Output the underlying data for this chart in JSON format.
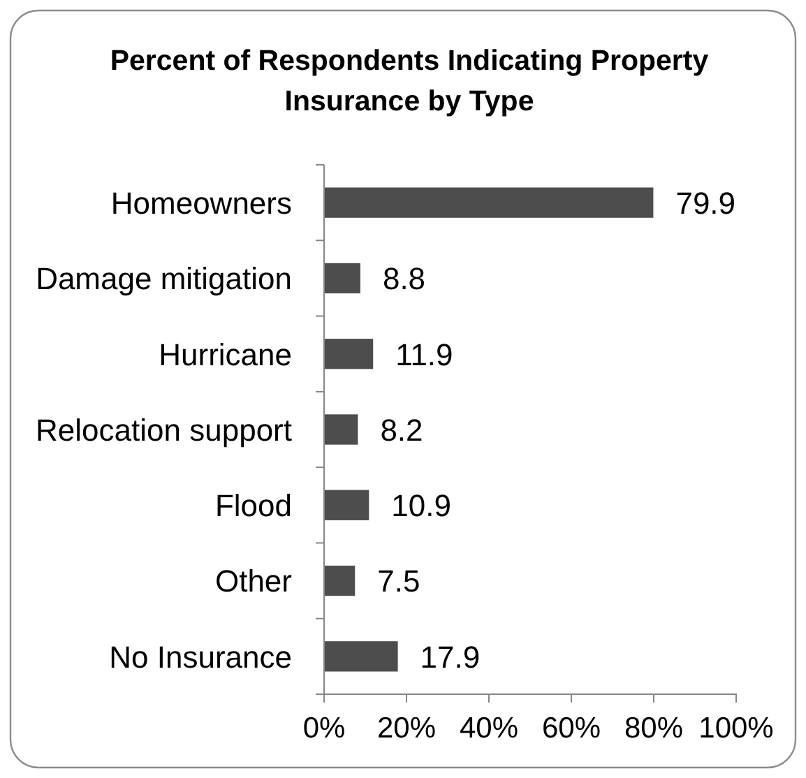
{
  "chart_data": {
    "type": "bar",
    "orientation": "horizontal",
    "title": "Percent of Respondents Indicating Property Insurance by Type",
    "categories": [
      "Homeowners",
      "Damage mitigation",
      "Hurricane",
      "Relocation support",
      "Flood",
      "Other",
      "No Insurance"
    ],
    "values": [
      79.9,
      8.8,
      11.9,
      8.2,
      10.9,
      7.5,
      17.9
    ],
    "color": "#4d4d4d",
    "data_labels": true,
    "xlim": [
      0,
      100
    ],
    "xticks": [
      {
        "value": 0,
        "label": "0%"
      },
      {
        "value": 20,
        "label": "20%"
      },
      {
        "value": 40,
        "label": "40%"
      },
      {
        "value": 60,
        "label": "60%"
      },
      {
        "value": 80,
        "label": "80%"
      },
      {
        "value": 100,
        "label": "100%"
      }
    ],
    "grid": false
  }
}
